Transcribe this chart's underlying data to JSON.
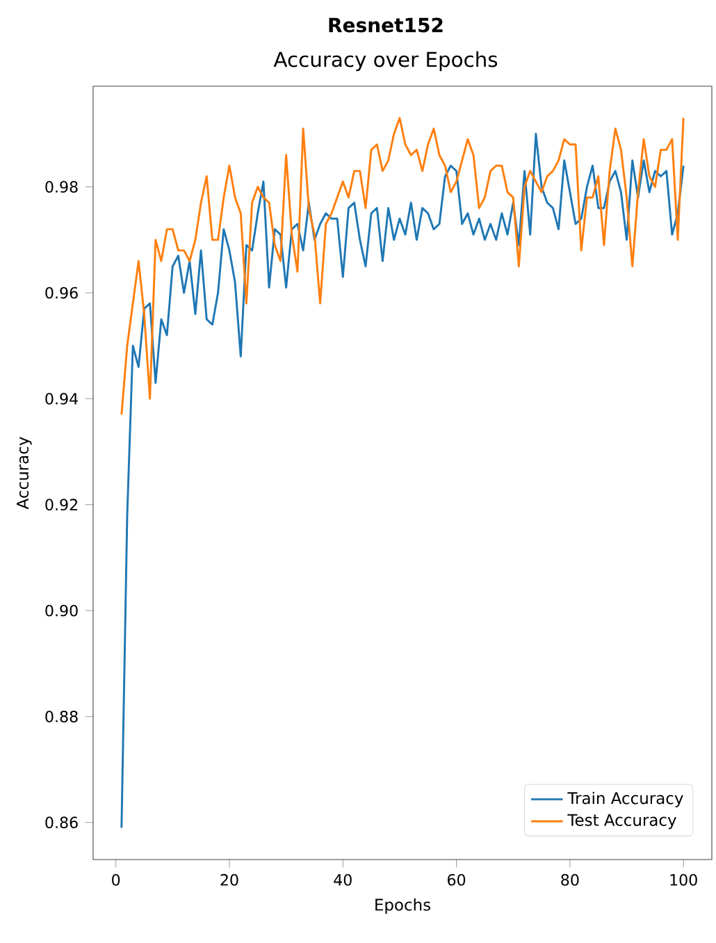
{
  "chart_data": {
    "type": "line",
    "title": "Resnet152",
    "subtitle": "Accuracy over Epochs",
    "xlabel": "Epochs",
    "ylabel": "Accuracy",
    "x": [
      1,
      2,
      3,
      4,
      5,
      6,
      7,
      8,
      9,
      10,
      11,
      12,
      13,
      14,
      15,
      16,
      17,
      18,
      19,
      20,
      21,
      22,
      23,
      24,
      25,
      26,
      27,
      28,
      29,
      30,
      31,
      32,
      33,
      34,
      35,
      36,
      37,
      38,
      39,
      40,
      41,
      42,
      43,
      44,
      45,
      46,
      47,
      48,
      49,
      50,
      51,
      52,
      53,
      54,
      55,
      56,
      57,
      58,
      59,
      60,
      61,
      62,
      63,
      64,
      65,
      66,
      67,
      68,
      69,
      70,
      71,
      72,
      73,
      74,
      75,
      76,
      77,
      78,
      79,
      80,
      81,
      82,
      83,
      84,
      85,
      86,
      87,
      88,
      89,
      90,
      91,
      92,
      93,
      94,
      95,
      96,
      97,
      98,
      99,
      100
    ],
    "series": [
      {
        "name": "Train Accuracy",
        "color": "#1f77b4",
        "values": [
          0.859,
          0.918,
          0.95,
          0.946,
          0.957,
          0.958,
          0.943,
          0.955,
          0.952,
          0.965,
          0.967,
          0.96,
          0.966,
          0.956,
          0.968,
          0.955,
          0.954,
          0.96,
          0.972,
          0.968,
          0.962,
          0.948,
          0.969,
          0.968,
          0.975,
          0.981,
          0.961,
          0.972,
          0.971,
          0.961,
          0.972,
          0.973,
          0.968,
          0.977,
          0.97,
          0.973,
          0.975,
          0.974,
          0.974,
          0.963,
          0.976,
          0.977,
          0.97,
          0.965,
          0.975,
          0.976,
          0.966,
          0.976,
          0.97,
          0.974,
          0.971,
          0.977,
          0.97,
          0.976,
          0.975,
          0.972,
          0.973,
          0.982,
          0.984,
          0.983,
          0.973,
          0.975,
          0.971,
          0.974,
          0.97,
          0.973,
          0.97,
          0.975,
          0.971,
          0.977,
          0.969,
          0.983,
          0.971,
          0.99,
          0.98,
          0.977,
          0.976,
          0.972,
          0.985,
          0.979,
          0.973,
          0.974,
          0.98,
          0.984,
          0.976,
          0.976,
          0.981,
          0.983,
          0.979,
          0.97,
          0.985,
          0.978,
          0.985,
          0.979,
          0.983,
          0.982,
          0.983,
          0.971,
          0.975,
          0.984
        ]
      },
      {
        "name": "Test Accuracy",
        "color": "#ff7f0e",
        "values": [
          0.937,
          0.95,
          0.958,
          0.966,
          0.956,
          0.94,
          0.97,
          0.966,
          0.972,
          0.972,
          0.968,
          0.968,
          0.966,
          0.97,
          0.977,
          0.982,
          0.97,
          0.97,
          0.978,
          0.984,
          0.978,
          0.975,
          0.958,
          0.977,
          0.98,
          0.978,
          0.977,
          0.969,
          0.966,
          0.986,
          0.971,
          0.964,
          0.991,
          0.976,
          0.971,
          0.958,
          0.973,
          0.975,
          0.978,
          0.981,
          0.978,
          0.983,
          0.983,
          0.976,
          0.987,
          0.988,
          0.983,
          0.985,
          0.99,
          0.993,
          0.988,
          0.986,
          0.987,
          0.983,
          0.988,
          0.991,
          0.986,
          0.984,
          0.979,
          0.981,
          0.985,
          0.989,
          0.986,
          0.976,
          0.978,
          0.983,
          0.984,
          0.984,
          0.979,
          0.978,
          0.965,
          0.98,
          0.983,
          0.981,
          0.979,
          0.982,
          0.983,
          0.985,
          0.989,
          0.988,
          0.988,
          0.968,
          0.978,
          0.978,
          0.982,
          0.969,
          0.983,
          0.991,
          0.987,
          0.978,
          0.965,
          0.979,
          0.989,
          0.982,
          0.98,
          0.987,
          0.987,
          0.989,
          0.97,
          0.993
        ]
      }
    ],
    "xlim": [
      -4,
      105
    ],
    "ylim": [
      0.853,
      0.999
    ],
    "xticks": [
      0,
      20,
      40,
      60,
      80,
      100
    ],
    "yticks": [
      0.86,
      0.88,
      {
        "value": 0.9,
        "label": "0.90"
      },
      0.92,
      0.94,
      0.96,
      0.98
    ],
    "grid": false,
    "legend": "bottom right",
    "marker": "none",
    "line_style": "solid"
  }
}
